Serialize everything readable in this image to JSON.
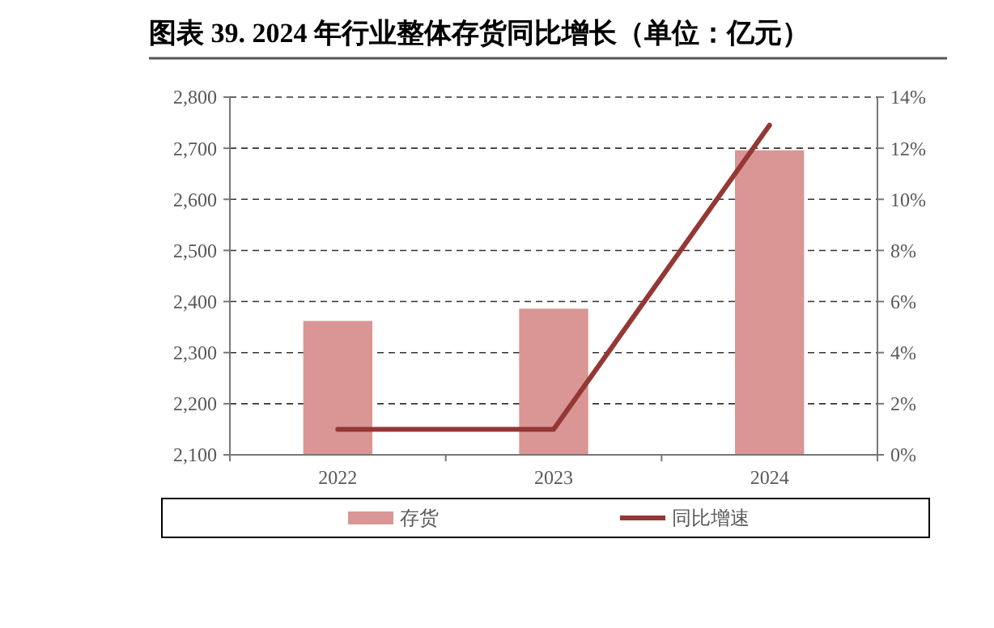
{
  "chart_data": {
    "type": "bar",
    "title": "图表 39. 2024 年行业整体存货同比增长（单位：亿元）",
    "categories": [
      "2022",
      "2023",
      "2024"
    ],
    "series": [
      {
        "name": "存货",
        "color": "#d99694",
        "values": [
          2362,
          2386,
          2696
        ]
      },
      {
        "name": "同比增速",
        "type": "line",
        "axis": "y2",
        "color": "#953735",
        "values": [
          1.0,
          1.0,
          12.9
        ]
      }
    ],
    "ylim": [
      2100,
      2800
    ],
    "yticks": [
      {
        "value": 2100,
        "label": "2,100"
      },
      {
        "value": 2200,
        "label": "2,200"
      },
      {
        "value": 2300,
        "label": "2,300"
      },
      {
        "value": 2400,
        "label": "2,400"
      },
      {
        "value": 2500,
        "label": "2,500"
      },
      {
        "value": 2600,
        "label": "2,600"
      },
      {
        "value": 2700,
        "label": "2,700"
      },
      {
        "value": 2800,
        "label": "2,800"
      }
    ],
    "y2lim": [
      0,
      14
    ],
    "y2ticks": [
      {
        "value": 0,
        "label": "0%"
      },
      {
        "value": 2,
        "label": "2%"
      },
      {
        "value": 4,
        "label": "4%"
      },
      {
        "value": 6,
        "label": "6%"
      },
      {
        "value": 8,
        "label": "8%"
      },
      {
        "value": 10,
        "label": "10%"
      },
      {
        "value": 12,
        "label": "12%"
      },
      {
        "value": 14,
        "label": "14%"
      }
    ],
    "grid": "y",
    "legend": "bottom"
  }
}
